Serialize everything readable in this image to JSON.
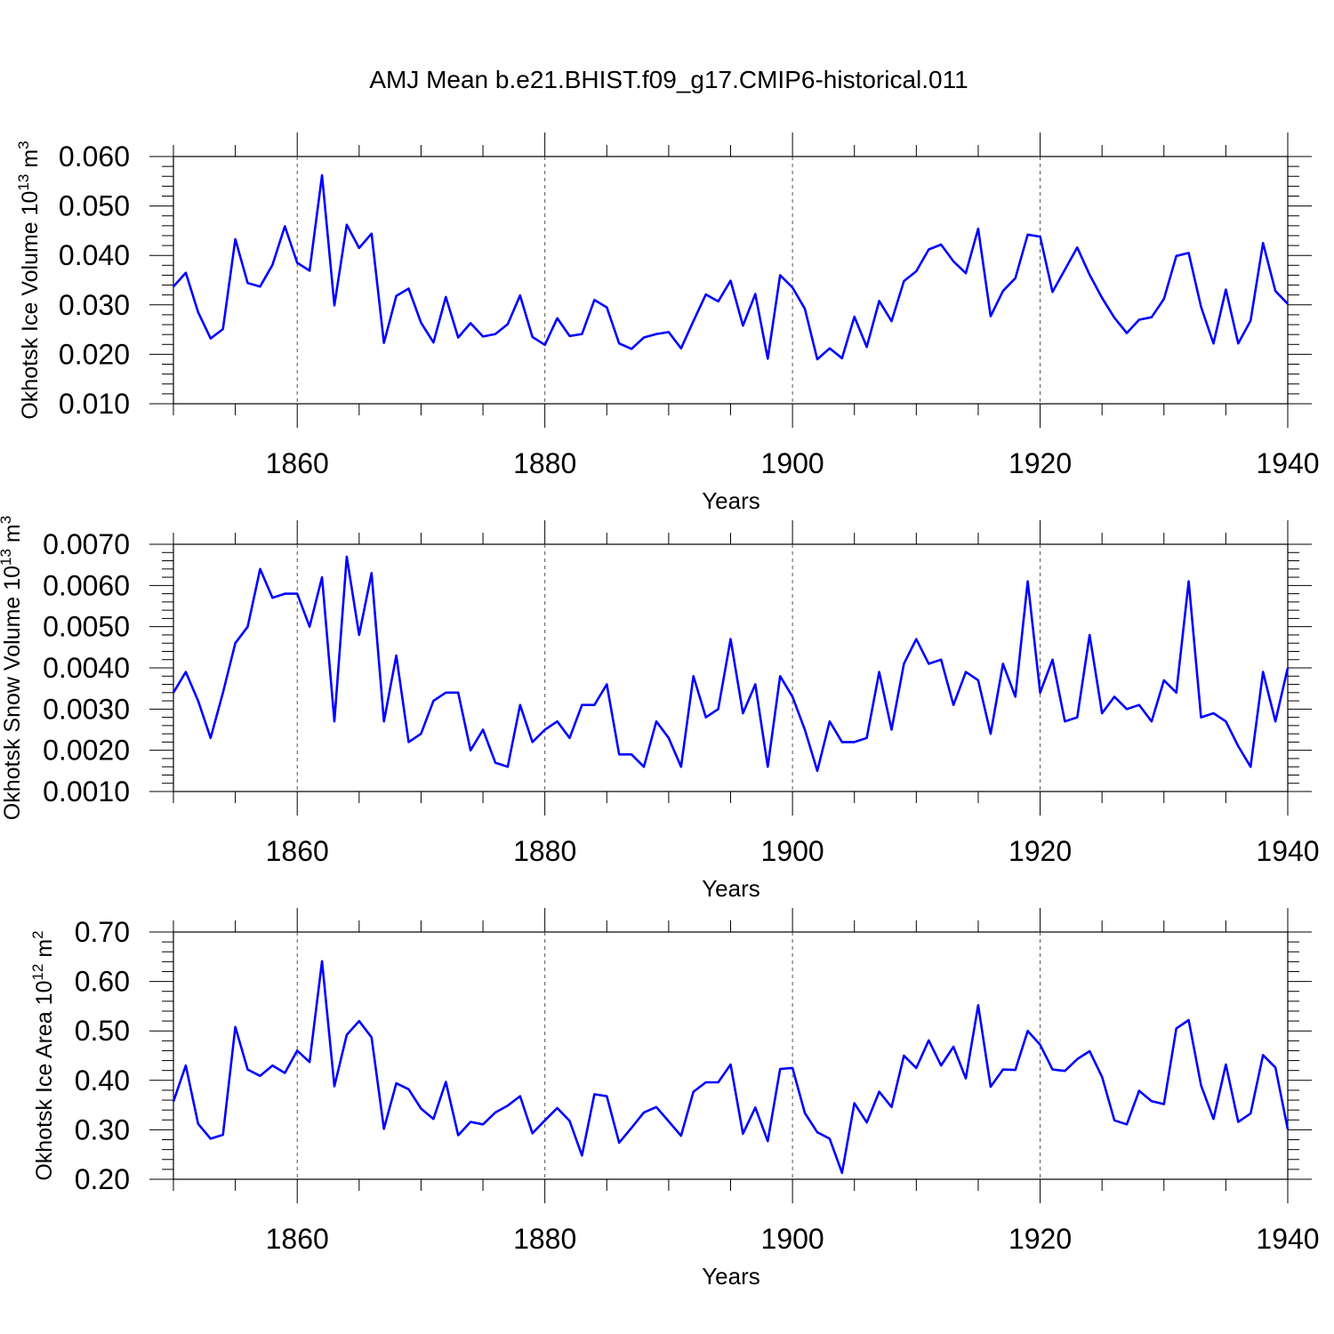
{
  "title": "AMJ Mean b.e21.BHIST.f09_g17.CMIP6-historical.011",
  "line_color": "#0000ff",
  "chart_data": [
    {
      "type": "line",
      "ylabel": "Okhotsk Ice Volume 10",
      "ylabel_exp": "13",
      "ylabel_unit": "m",
      "ylabel_unit_exp": "3",
      "xlabel": "Years",
      "xlim": [
        1850,
        1940
      ],
      "ylim": [
        0.01,
        0.06
      ],
      "yticks": [
        0.01,
        0.02,
        0.03,
        0.04,
        0.05,
        0.06
      ],
      "ytick_labels": [
        "0.010",
        "0.020",
        "0.030",
        "0.040",
        "0.050",
        "0.060"
      ],
      "xticks": [
        1860,
        1880,
        1900,
        1920,
        1940
      ],
      "xtick_labels": [
        "1860",
        "1880",
        "1900",
        "1920",
        "1940"
      ],
      "grid_x": [
        1860,
        1880,
        1900,
        1920
      ],
      "x_start": 1850,
      "series": [
        {
          "values": [
            0.0337,
            0.0365,
            0.0285,
            0.0232,
            0.0251,
            0.0433,
            0.0344,
            0.0337,
            0.0381,
            0.0459,
            0.0385,
            0.0369,
            0.0562,
            0.0299,
            0.0462,
            0.0415,
            0.0444,
            0.0223,
            0.0318,
            0.0333,
            0.0264,
            0.0224,
            0.0316,
            0.0234,
            0.0263,
            0.0236,
            0.0241,
            0.0261,
            0.0319,
            0.0235,
            0.0219,
            0.0273,
            0.0237,
            0.0241,
            0.031,
            0.0295,
            0.0222,
            0.0211,
            0.0234,
            0.0241,
            0.0245,
            0.0212,
            0.0267,
            0.0321,
            0.0307,
            0.0349,
            0.0258,
            0.0322,
            0.0191,
            0.036,
            0.0335,
            0.0292,
            0.019,
            0.0212,
            0.0192,
            0.0276,
            0.0215,
            0.0308,
            0.0267,
            0.0348,
            0.0368,
            0.0412,
            0.0422,
            0.0388,
            0.0364,
            0.0454,
            0.0277,
            0.0328,
            0.0354,
            0.0442,
            0.0438,
            0.0326,
            0.0371,
            0.0416,
            0.0361,
            0.0314,
            0.0274,
            0.0243,
            0.027,
            0.0275,
            0.0312,
            0.0399,
            0.0405,
            0.0296,
            0.0222,
            0.0331,
            0.0222,
            0.0268,
            0.0425,
            0.0328,
            0.0302
          ]
        }
      ]
    },
    {
      "type": "line",
      "ylabel": "Okhotsk Snow Volume 10",
      "ylabel_exp": "13",
      "ylabel_unit": "m",
      "ylabel_unit_exp": "3",
      "xlabel": "Years",
      "xlim": [
        1850,
        1940
      ],
      "ylim": [
        0.001,
        0.007
      ],
      "yticks": [
        0.001,
        0.002,
        0.003,
        0.004,
        0.005,
        0.006,
        0.007
      ],
      "ytick_labels": [
        "0.0010",
        "0.0020",
        "0.0030",
        "0.0040",
        "0.0050",
        "0.0060",
        "0.0070"
      ],
      "xticks": [
        1860,
        1880,
        1900,
        1920,
        1940
      ],
      "xtick_labels": [
        "1860",
        "1880",
        "1900",
        "1920",
        "1940"
      ],
      "grid_x": [
        1860,
        1880,
        1900,
        1920
      ],
      "x_start": 1850,
      "series": [
        {
          "values": [
            0.0034,
            0.0039,
            0.0032,
            0.0023,
            0.0034,
            0.0046,
            0.005,
            0.0064,
            0.0057,
            0.0058,
            0.0058,
            0.005,
            0.0062,
            0.0027,
            0.0067,
            0.0048,
            0.0063,
            0.0027,
            0.0043,
            0.0022,
            0.0024,
            0.0032,
            0.0034,
            0.0034,
            0.002,
            0.0025,
            0.0017,
            0.0016,
            0.0031,
            0.0022,
            0.0025,
            0.0027,
            0.0023,
            0.0031,
            0.0031,
            0.0036,
            0.0019,
            0.0019,
            0.0016,
            0.0027,
            0.0023,
            0.0016,
            0.0038,
            0.0028,
            0.003,
            0.0047,
            0.0029,
            0.0036,
            0.0016,
            0.0038,
            0.0033,
            0.0025,
            0.0015,
            0.0027,
            0.0022,
            0.0022,
            0.0023,
            0.0039,
            0.0025,
            0.0041,
            0.0047,
            0.0041,
            0.0042,
            0.0031,
            0.0039,
            0.0037,
            0.0024,
            0.0041,
            0.0033,
            0.0061,
            0.0034,
            0.0042,
            0.0027,
            0.0028,
            0.0048,
            0.0029,
            0.0033,
            0.003,
            0.0031,
            0.0027,
            0.0037,
            0.0034,
            0.0061,
            0.0028,
            0.0029,
            0.0027,
            0.0021,
            0.0016,
            0.0039,
            0.0027,
            0.004
          ]
        }
      ]
    },
    {
      "type": "line",
      "ylabel": "Okhotsk Ice Area 10",
      "ylabel_exp": "12",
      "ylabel_unit": "m",
      "ylabel_unit_exp": "2",
      "xlabel": "Years",
      "xlim": [
        1850,
        1940
      ],
      "ylim": [
        0.2,
        0.7
      ],
      "yticks": [
        0.2,
        0.3,
        0.4,
        0.5,
        0.6,
        0.7
      ],
      "ytick_labels": [
        "0.20",
        "0.30",
        "0.40",
        "0.50",
        "0.60",
        "0.70"
      ],
      "xticks": [
        1860,
        1880,
        1900,
        1920,
        1940
      ],
      "xtick_labels": [
        "1860",
        "1880",
        "1900",
        "1920",
        "1940"
      ],
      "grid_x": [
        1860,
        1880,
        1900,
        1920
      ],
      "x_start": 1850,
      "series": [
        {
          "values": [
            0.357,
            0.43,
            0.312,
            0.282,
            0.29,
            0.508,
            0.422,
            0.409,
            0.43,
            0.415,
            0.46,
            0.437,
            0.641,
            0.388,
            0.492,
            0.52,
            0.487,
            0.302,
            0.394,
            0.382,
            0.343,
            0.322,
            0.397,
            0.289,
            0.316,
            0.311,
            0.335,
            0.349,
            0.368,
            0.293,
            0.319,
            0.344,
            0.318,
            0.248,
            0.372,
            0.368,
            0.274,
            0.304,
            0.335,
            0.346,
            0.317,
            0.288,
            0.377,
            0.396,
            0.396,
            0.432,
            0.292,
            0.345,
            0.277,
            0.423,
            0.425,
            0.334,
            0.295,
            0.282,
            0.213,
            0.354,
            0.315,
            0.377,
            0.346,
            0.45,
            0.425,
            0.481,
            0.43,
            0.468,
            0.404,
            0.552,
            0.387,
            0.422,
            0.421,
            0.5,
            0.472,
            0.422,
            0.419,
            0.443,
            0.459,
            0.407,
            0.319,
            0.311,
            0.379,
            0.358,
            0.352,
            0.505,
            0.522,
            0.39,
            0.322,
            0.432,
            0.316,
            0.333,
            0.451,
            0.426,
            0.301
          ]
        }
      ]
    }
  ]
}
